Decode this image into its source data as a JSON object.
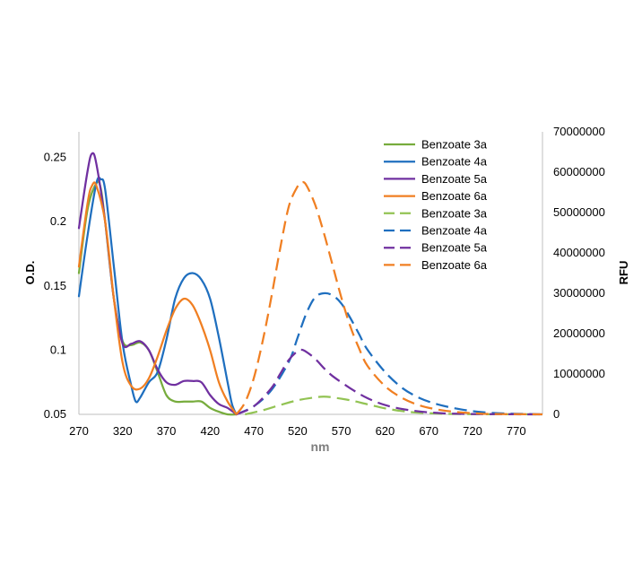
{
  "chart_data": {
    "type": "line",
    "xlabel": "nm",
    "ylabel_left": "O.D.",
    "ylabel_right": "RFU",
    "xlim": [
      270,
      800
    ],
    "ylim_left": [
      0.05,
      0.27
    ],
    "ylim_right": [
      0,
      70000000
    ],
    "x_ticks": [
      "270",
      "320",
      "370",
      "420",
      "470",
      "520",
      "570",
      "620",
      "670",
      "720",
      "770"
    ],
    "y_left_ticks": [
      "0.05",
      "0.1",
      "0.15",
      "0.2",
      "0.25"
    ],
    "y_right_ticks": [
      "0",
      "10000000",
      "20000000",
      "30000000",
      "40000000",
      "50000000",
      "60000000",
      "70000000"
    ],
    "legend_position": "top-right",
    "grid": false,
    "series": [
      {
        "name": "Benzoate 3a",
        "axis": "left",
        "style": "solid",
        "color": "#77ac3d",
        "x": [
          270,
          280,
          290,
          295,
          300,
          310,
          320,
          330,
          340,
          350,
          360,
          370,
          380,
          390,
          400,
          410,
          420,
          430,
          440,
          450
        ],
        "y": [
          0.16,
          0.21,
          0.23,
          0.226,
          0.2,
          0.14,
          0.107,
          0.104,
          0.106,
          0.1,
          0.083,
          0.065,
          0.06,
          0.06,
          0.06,
          0.06,
          0.055,
          0.052,
          0.05,
          0.05
        ]
      },
      {
        "name": "Benzoate 4a",
        "axis": "left",
        "style": "solid",
        "color": "#1f6fbf",
        "x": [
          270,
          280,
          290,
          295,
          300,
          310,
          320,
          330,
          335,
          340,
          350,
          360,
          370,
          380,
          390,
          400,
          410,
          420,
          430,
          440,
          445,
          450
        ],
        "y": [
          0.142,
          0.19,
          0.23,
          0.233,
          0.225,
          0.165,
          0.105,
          0.072,
          0.06,
          0.063,
          0.075,
          0.083,
          0.108,
          0.14,
          0.156,
          0.16,
          0.155,
          0.14,
          0.11,
          0.075,
          0.058,
          0.05
        ]
      },
      {
        "name": "Benzoate 5a",
        "axis": "left",
        "style": "solid",
        "color": "#7030a0",
        "x": [
          270,
          280,
          285,
          290,
          300,
          310,
          320,
          330,
          340,
          350,
          360,
          370,
          380,
          390,
          400,
          410,
          420,
          430,
          440,
          450
        ],
        "y": [
          0.195,
          0.24,
          0.253,
          0.245,
          0.2,
          0.14,
          0.105,
          0.105,
          0.107,
          0.1,
          0.085,
          0.075,
          0.073,
          0.076,
          0.076,
          0.075,
          0.065,
          0.058,
          0.055,
          0.05
        ]
      },
      {
        "name": "Benzoate 6a",
        "axis": "left",
        "style": "solid",
        "color": "#f07f22",
        "x": [
          270,
          280,
          285,
          290,
          300,
          310,
          320,
          330,
          340,
          350,
          360,
          370,
          380,
          390,
          400,
          410,
          420,
          430,
          440,
          450
        ],
        "y": [
          0.165,
          0.215,
          0.228,
          0.228,
          0.2,
          0.14,
          0.09,
          0.072,
          0.07,
          0.078,
          0.095,
          0.115,
          0.132,
          0.14,
          0.135,
          0.12,
          0.1,
          0.075,
          0.06,
          0.05
        ]
      },
      {
        "name": "Benzoate 3a",
        "axis": "right",
        "style": "dashed",
        "color": "#92c353",
        "x": [
          460,
          480,
          500,
          520,
          540,
          550,
          560,
          580,
          600,
          620,
          640,
          660,
          700,
          800
        ],
        "y": [
          0,
          1000000,
          2300000,
          3500000,
          4200000,
          4400000,
          4200000,
          3500000,
          2500000,
          1500000,
          800000,
          400000,
          100000,
          0
        ]
      },
      {
        "name": "Benzoate 4a",
        "axis": "right",
        "style": "dashed",
        "color": "#1f6fbf",
        "x": [
          450,
          470,
          490,
          510,
          520,
          530,
          540,
          550,
          560,
          570,
          580,
          590,
          600,
          620,
          640,
          660,
          680,
          700,
          720,
          740,
          760,
          780,
          800
        ],
        "y": [
          0,
          2000000,
          6000000,
          13000000,
          19000000,
          25000000,
          29000000,
          30000000,
          29500000,
          27500000,
          24000000,
          20000000,
          16000000,
          10500000,
          6500000,
          4000000,
          2500000,
          1500000,
          800000,
          400000,
          200000,
          100000,
          0
        ]
      },
      {
        "name": "Benzoate 5a",
        "axis": "right",
        "style": "dashed",
        "color": "#7030a0",
        "x": [
          450,
          470,
          490,
          500,
          510,
          520,
          525,
          530,
          540,
          550,
          560,
          580,
          600,
          620,
          640,
          660,
          680,
          700,
          740,
          800
        ],
        "y": [
          0,
          2000000,
          6500000,
          10000000,
          13500000,
          15700000,
          16000000,
          15500000,
          13800000,
          11500000,
          9500000,
          6500000,
          4000000,
          2300000,
          1300000,
          700000,
          350000,
          150000,
          50000,
          0
        ]
      },
      {
        "name": "Benzoate 6a",
        "axis": "right",
        "style": "dashed",
        "color": "#f07f22",
        "x": [
          450,
          460,
          470,
          480,
          490,
          500,
          510,
          520,
          525,
          530,
          540,
          550,
          560,
          570,
          580,
          590,
          600,
          620,
          640,
          660,
          680,
          700,
          720,
          740,
          770,
          800
        ],
        "y": [
          0,
          3000000,
          9000000,
          18000000,
          29000000,
          41000000,
          51500000,
          56500000,
          57500000,
          56800000,
          52000000,
          45000000,
          37000000,
          29000000,
          22000000,
          16500000,
          12000000,
          7000000,
          4000000,
          2200000,
          1200000,
          600000,
          300000,
          100000,
          50000,
          0
        ]
      }
    ]
  }
}
